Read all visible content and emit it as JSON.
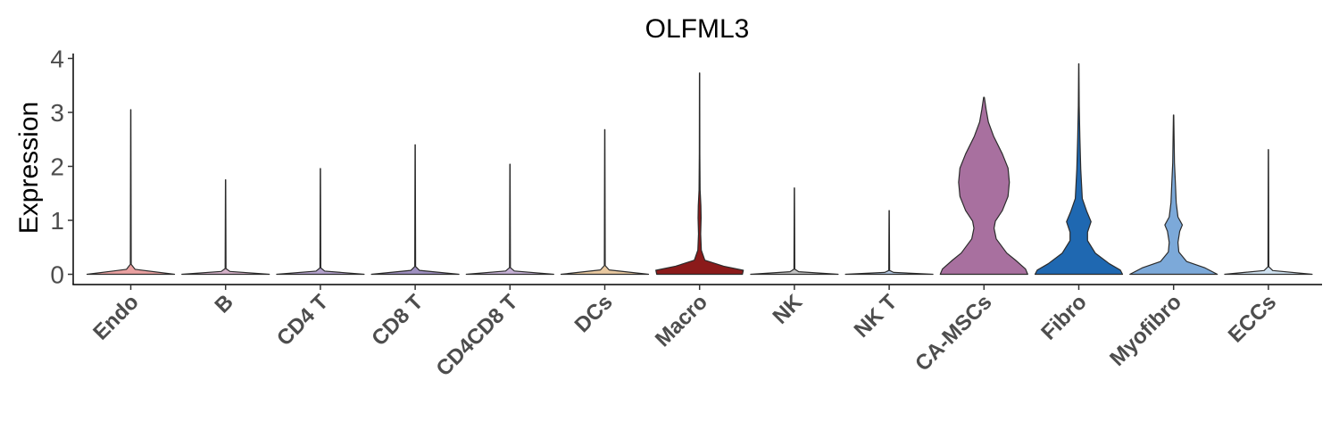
{
  "chart_data": {
    "type": "violin",
    "title": "OLFML3",
    "xlabel": "",
    "ylabel": "Expression",
    "ylim": [
      -0.2,
      4.1
    ],
    "yticks": [
      0,
      1,
      2,
      3,
      4
    ],
    "grid": false,
    "legend": "none",
    "categories": [
      "Endo",
      "B",
      "CD4 T",
      "CD8 T",
      "CD4CD8 T",
      "DCs",
      "Macro",
      "NK",
      "NK T",
      "CA-MSCs",
      "Fibro",
      "Myofibro",
      "ECCs"
    ],
    "max_values": [
      3.05,
      1.75,
      1.96,
      2.4,
      2.04,
      2.68,
      3.73,
      1.6,
      1.18,
      3.28,
      3.9,
      2.95,
      2.31
    ],
    "colors": [
      "#e9a0a0",
      "#d4b0c8",
      "#b3a1cc",
      "#9e8fc0",
      "#c5b0d5",
      "#e9c9a0",
      "#8b1a1a",
      "#c1c1c1",
      "#b0c4de",
      "#a8709f",
      "#1f68b1",
      "#7ca9d9",
      "#cfe1f0"
    ],
    "density_profiles": [
      [
        [
          0,
          1.0
        ],
        [
          0.03,
          0.1
        ],
        [
          0.06,
          0.01
        ],
        [
          1,
          0.003
        ]
      ],
      [
        [
          0,
          1.0
        ],
        [
          0.03,
          0.1
        ],
        [
          0.06,
          0.01
        ],
        [
          1,
          0.003
        ]
      ],
      [
        [
          0,
          1.0
        ],
        [
          0.03,
          0.1
        ],
        [
          0.06,
          0.01
        ],
        [
          1,
          0.003
        ]
      ],
      [
        [
          0,
          1.0
        ],
        [
          0.03,
          0.1
        ],
        [
          0.06,
          0.01
        ],
        [
          1,
          0.003
        ]
      ],
      [
        [
          0,
          1.0
        ],
        [
          0.03,
          0.1
        ],
        [
          0.06,
          0.01
        ],
        [
          1,
          0.003
        ]
      ],
      [
        [
          0,
          1.0
        ],
        [
          0.03,
          0.1
        ],
        [
          0.06,
          0.01
        ],
        [
          1,
          0.003
        ]
      ],
      [
        [
          0,
          0.98
        ],
        [
          0.02,
          1.0
        ],
        [
          0.04,
          0.55
        ],
        [
          0.07,
          0.12
        ],
        [
          0.12,
          0.04
        ],
        [
          0.2,
          0.025
        ],
        [
          0.28,
          0.035
        ],
        [
          0.34,
          0.03
        ],
        [
          0.42,
          0.012
        ],
        [
          0.6,
          0.006
        ],
        [
          1,
          0.003
        ]
      ],
      [
        [
          0,
          1.0
        ],
        [
          0.03,
          0.1
        ],
        [
          0.06,
          0.01
        ],
        [
          1,
          0.003
        ]
      ],
      [
        [
          0,
          1.0
        ],
        [
          0.03,
          0.1
        ],
        [
          0.06,
          0.01
        ],
        [
          1,
          0.003
        ]
      ],
      [
        [
          0,
          1.0
        ],
        [
          0.03,
          0.95
        ],
        [
          0.08,
          0.72
        ],
        [
          0.12,
          0.52
        ],
        [
          0.2,
          0.28
        ],
        [
          0.26,
          0.23
        ],
        [
          0.3,
          0.26
        ],
        [
          0.36,
          0.42
        ],
        [
          0.44,
          0.55
        ],
        [
          0.52,
          0.58
        ],
        [
          0.6,
          0.55
        ],
        [
          0.68,
          0.42
        ],
        [
          0.78,
          0.22
        ],
        [
          0.86,
          0.1
        ],
        [
          0.93,
          0.05
        ],
        [
          1,
          0.008
        ]
      ],
      [
        [
          0,
          1.0
        ],
        [
          0.02,
          0.95
        ],
        [
          0.05,
          0.7
        ],
        [
          0.1,
          0.38
        ],
        [
          0.16,
          0.2
        ],
        [
          0.2,
          0.2
        ],
        [
          0.25,
          0.28
        ],
        [
          0.3,
          0.18
        ],
        [
          0.36,
          0.08
        ],
        [
          0.5,
          0.045
        ],
        [
          0.65,
          0.025
        ],
        [
          0.8,
          0.01
        ],
        [
          1,
          0.003
        ]
      ],
      [
        [
          0,
          1.0
        ],
        [
          0.04,
          0.72
        ],
        [
          0.08,
          0.3
        ],
        [
          0.14,
          0.12
        ],
        [
          0.2,
          0.1
        ],
        [
          0.27,
          0.14
        ],
        [
          0.31,
          0.2
        ],
        [
          0.36,
          0.1
        ],
        [
          0.45,
          0.06
        ],
        [
          0.55,
          0.045
        ],
        [
          0.7,
          0.02
        ],
        [
          1,
          0.004
        ]
      ],
      [
        [
          0,
          1.0
        ],
        [
          0.03,
          0.1
        ],
        [
          0.06,
          0.01
        ],
        [
          1,
          0.003
        ]
      ]
    ]
  }
}
